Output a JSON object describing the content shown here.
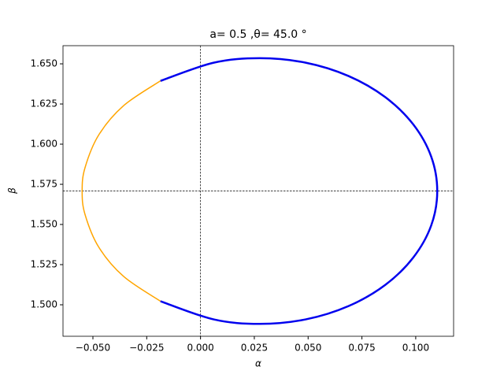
{
  "chart_data": {
    "type": "line",
    "title": "a= 0.5 ,θ= 45.0 °",
    "xlabel": "α",
    "ylabel": "β",
    "xlim": [
      -0.0639,
      0.1176
    ],
    "ylim": [
      1.4804,
      1.6613
    ],
    "xticks": [
      {
        "value": -0.05,
        "label": "−0.050"
      },
      {
        "value": -0.025,
        "label": "−0.025"
      },
      {
        "value": 0,
        "label": "0.000"
      },
      {
        "value": 0.025,
        "label": "0.025"
      },
      {
        "value": 0.05,
        "label": "0.050"
      },
      {
        "value": 0.075,
        "label": "0.075"
      },
      {
        "value": 0.1,
        "label": "0.100"
      }
    ],
    "yticks": [
      {
        "value": 1.5,
        "label": "1.500"
      },
      {
        "value": 1.525,
        "label": "1.525"
      },
      {
        "value": 1.55,
        "label": "1.550"
      },
      {
        "value": 1.575,
        "label": "1.575"
      },
      {
        "value": 1.6,
        "label": "1.600"
      },
      {
        "value": 1.625,
        "label": "1.625"
      },
      {
        "value": 1.65,
        "label": "1.650"
      }
    ],
    "axvline": 0,
    "axhline": 1.5708,
    "series": [
      {
        "color": "orange",
        "width": 1.5,
        "x": [
          -0.0186,
          -0.0357,
          -0.0473,
          -0.0537,
          -0.055,
          -0.0537,
          -0.0473,
          -0.0357,
          -0.0186
        ],
        "values": [
          1.6394,
          1.624,
          1.6057,
          1.5852,
          1.5708,
          1.5564,
          1.5359,
          1.5176,
          1.5022
        ]
      },
      {
        "color": "#0000ee",
        "width": 2.5,
        "x": [
          -0.0186,
          0.0061,
          0.0275,
          0.0489,
          0.0688,
          0.0858,
          0.0989,
          0.1072,
          0.11,
          0.1072,
          0.0989,
          0.0858,
          0.0688,
          0.0489,
          0.0275,
          0.0061,
          -0.0186
        ],
        "values": [
          1.6394,
          1.6507,
          1.6535,
          1.6507,
          1.6424,
          1.6293,
          1.6122,
          1.5922,
          1.5708,
          1.5494,
          1.5295,
          1.5123,
          1.4992,
          1.4909,
          1.4881,
          1.4909,
          1.5022
        ]
      }
    ]
  }
}
